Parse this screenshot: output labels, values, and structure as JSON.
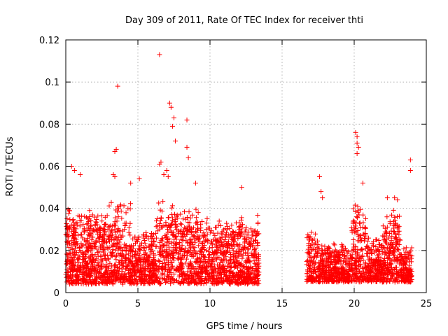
{
  "chart_data": {
    "type": "scatter",
    "title": "Day 309 of 2011, Rate Of TEC Index for receiver thti",
    "xlabel": "GPS time / hours",
    "ylabel": "ROTI / TECUs",
    "xlim": [
      0,
      25
    ],
    "ylim": [
      0,
      0.12
    ],
    "xticks": [
      0,
      5,
      10,
      15,
      20,
      25
    ],
    "xtick_labels": [
      "0",
      "5",
      "10",
      "15",
      "20",
      "25"
    ],
    "yticks": [
      0,
      0.02,
      0.04,
      0.06,
      0.08,
      0.1,
      0.12
    ],
    "ytick_labels": [
      "0",
      "0.02",
      "0.04",
      "0.06",
      "0.08",
      "0.1",
      "0.12"
    ],
    "grid": true,
    "marker": "+",
    "color": "#ff0000",
    "series": [
      {
        "points": [
          [
            6.5,
            0.113
          ],
          [
            3.6,
            0.098
          ],
          [
            7.2,
            0.09
          ],
          [
            7.3,
            0.088
          ],
          [
            7.5,
            0.083
          ],
          [
            7.4,
            0.079
          ],
          [
            7.6,
            0.072
          ],
          [
            8.4,
            0.082
          ],
          [
            8.4,
            0.069
          ],
          [
            3.5,
            0.068
          ],
          [
            3.4,
            0.067
          ],
          [
            8.5,
            0.064
          ],
          [
            6.6,
            0.062
          ],
          [
            6.5,
            0.061
          ],
          [
            6.8,
            0.056
          ],
          [
            0.4,
            0.06
          ],
          [
            0.6,
            0.058
          ],
          [
            1.0,
            0.056
          ],
          [
            3.3,
            0.056
          ],
          [
            3.4,
            0.055
          ],
          [
            5.1,
            0.054
          ],
          [
            4.5,
            0.052
          ],
          [
            7.0,
            0.058
          ],
          [
            7.1,
            0.055
          ],
          [
            9.0,
            0.052
          ],
          [
            12.2,
            0.05
          ],
          [
            20.1,
            0.076
          ],
          [
            20.2,
            0.074
          ],
          [
            20.2,
            0.071
          ],
          [
            20.3,
            0.069
          ],
          [
            20.2,
            0.066
          ],
          [
            17.6,
            0.055
          ],
          [
            20.6,
            0.052
          ],
          [
            23.9,
            0.063
          ],
          [
            23.9,
            0.058
          ],
          [
            22.3,
            0.045
          ],
          [
            22.8,
            0.045
          ],
          [
            23.0,
            0.044
          ],
          [
            17.7,
            0.048
          ],
          [
            17.8,
            0.045
          ]
        ]
      }
    ],
    "dense_clusters": [
      {
        "x_range": [
          0.0,
          13.4
        ],
        "y_range": [
          0.004,
          0.045
        ],
        "count": 2400
      },
      {
        "x_range": [
          16.7,
          24.0
        ],
        "y_range": [
          0.005,
          0.045
        ],
        "count": 1300
      }
    ]
  }
}
